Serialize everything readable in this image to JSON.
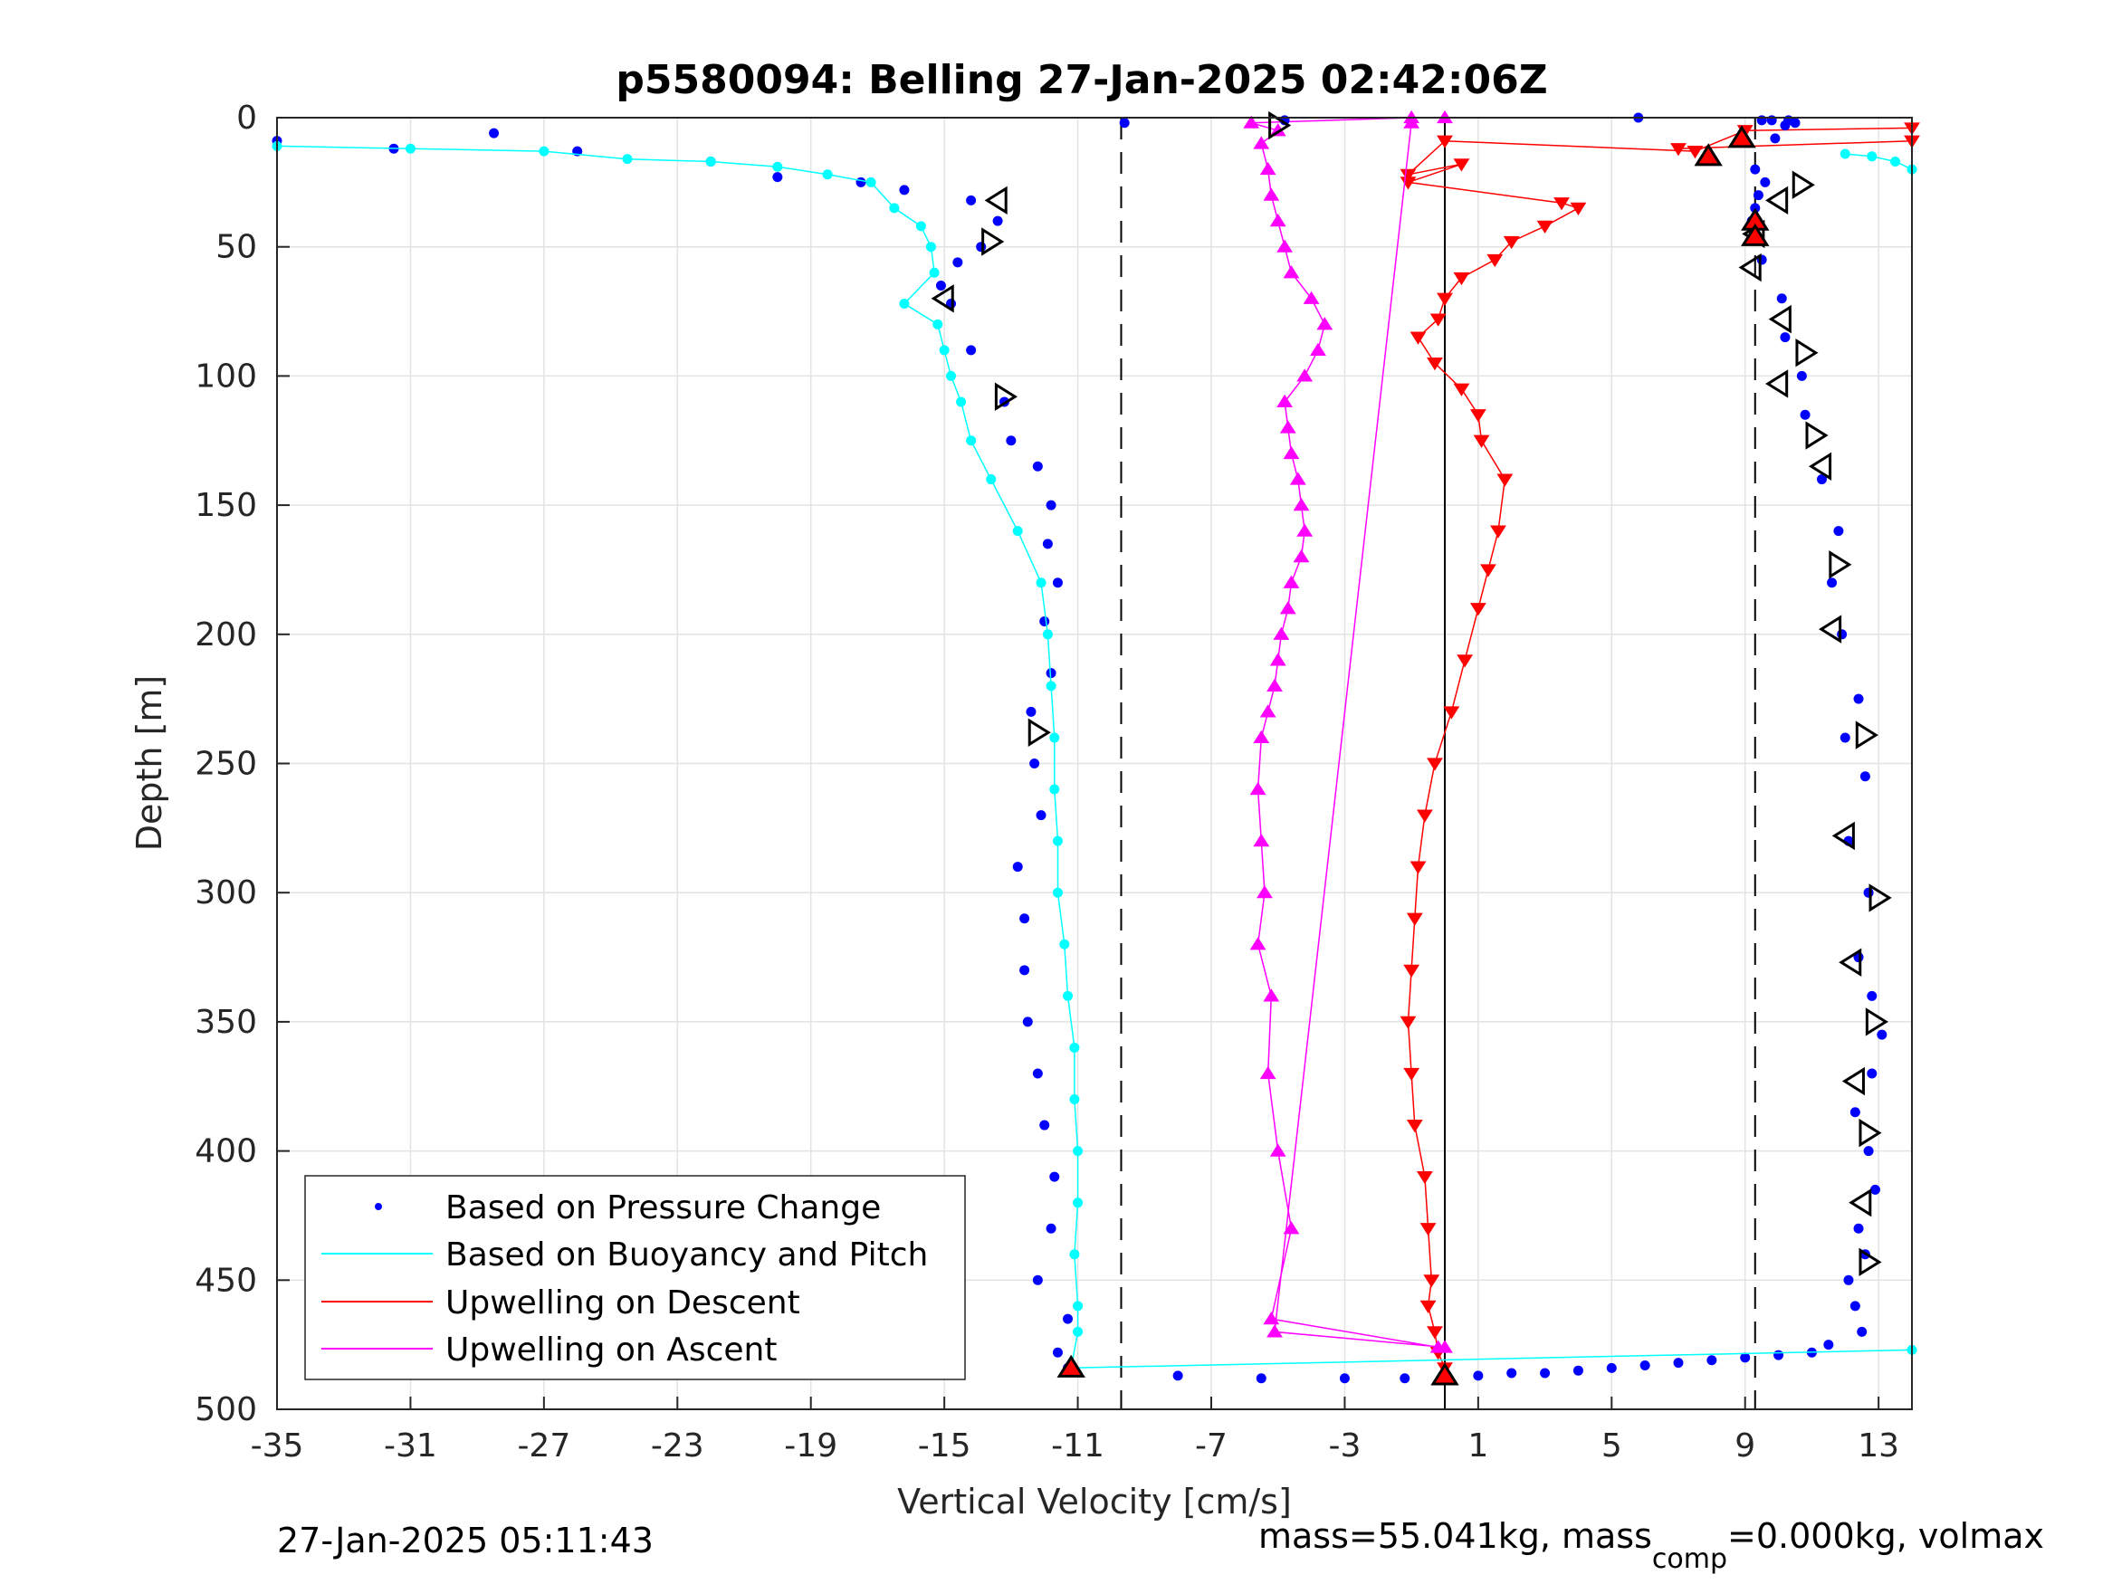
{
  "chart_data": {
    "type": "scatter",
    "title": "p5580094: Belling 27-Jan-2025 02:42:06Z",
    "xlabel": "Vertical Velocity [cm/s]",
    "ylabel": "Depth [m]",
    "xlim": [
      -35,
      14
    ],
    "ylim": [
      0,
      500
    ],
    "y_reversed": true,
    "grid": true,
    "legend_position": "bottom-left",
    "xticks": [
      -35,
      -31,
      -27,
      -23,
      -19,
      -15,
      -11,
      -7,
      -3,
      1,
      5,
      9,
      13
    ],
    "yticks": [
      0,
      50,
      100,
      150,
      200,
      250,
      300,
      350,
      400,
      450,
      500
    ],
    "reference_lines": [
      {
        "x": -9.7,
        "style": "dashed"
      },
      {
        "x": 0,
        "style": "solid"
      },
      {
        "x": 9.3,
        "style": "dashed"
      }
    ],
    "series": [
      {
        "name": "Based on Pressure Change",
        "color": "#0000ff",
        "marker": "dot",
        "segments": [
          {
            "x": [
              -35,
              -31.5,
              -28.5,
              -26,
              -22,
              -20,
              -17.5,
              -16.2,
              -14.2,
              -13.4,
              -13.9,
              -14.6,
              -15.1,
              -14.8,
              -14.2,
              -13.2,
              -13.0,
              -12.2,
              -11.8,
              -11.9,
              -11.6,
              -12.0,
              -11.8,
              -12.4,
              -12.3,
              -12.1,
              -12.8,
              -12.6,
              -12.6,
              -12.5,
              -12.2,
              -12.0,
              -11.7,
              -11.8,
              -12.2,
              -11.3,
              -11.6,
              -11.3
            ],
            "y": [
              9,
              12,
              6,
              13,
              17,
              23,
              25,
              28,
              32,
              40,
              50,
              56,
              65,
              72,
              90,
              110,
              125,
              135,
              150,
              165,
              180,
              195,
              215,
              230,
              250,
              270,
              290,
              310,
              330,
              350,
              370,
              390,
              410,
              430,
              450,
              465,
              478,
              485
            ]
          },
          {
            "x": [
              -11.3,
              -8,
              -5.5,
              -3,
              -1.2,
              0,
              1,
              2,
              3,
              4,
              5,
              6,
              7,
              8,
              9,
              10,
              11,
              11.5,
              12.5,
              12.3,
              12.1,
              12.6,
              12.4,
              12.9,
              12.7,
              12.3,
              12.8,
              13.1,
              12.8,
              12.4,
              12.7,
              12.1,
              12.6,
              12.0,
              12.4,
              11.9,
              11.6,
              11.8,
              11.3,
              10.8,
              10.7,
              10.2,
              10.1,
              9.5,
              9.3,
              9.2,
              9.3,
              9.4,
              9.6,
              9.3,
              9.9,
              10.2,
              9.8
            ],
            "y": [
              484,
              487,
              488,
              488,
              488,
              487,
              487,
              486,
              486,
              485,
              484,
              483,
              482,
              481,
              480,
              479,
              478,
              475,
              470,
              460,
              450,
              440,
              430,
              415,
              400,
              385,
              370,
              355,
              340,
              325,
              300,
              280,
              255,
              240,
              225,
              200,
              180,
              160,
              140,
              115,
              100,
              85,
              70,
              55,
              45,
              40,
              35,
              30,
              25,
              20,
              8,
              3,
              1
            ]
          },
          {
            "x": [
              -9.6,
              -4.8,
              5.8,
              9.5,
              10.3,
              10.5
            ],
            "y": [
              2,
              1,
              0,
              1,
              1,
              2
            ]
          }
        ]
      },
      {
        "name": "Based on Buoyancy and Pitch",
        "color": "#00ffff",
        "marker": "line+dot",
        "segments": [
          {
            "x": [
              -35,
              -31,
              -27,
              -24.5,
              -22,
              -20,
              -18.5,
              -17.2,
              -16.5,
              -15.7,
              -15.4,
              -15.3,
              -16.2,
              -15.2,
              -15.0,
              -14.8,
              -14.5,
              -14.2,
              -13.6,
              -12.8,
              -12.1,
              -11.9,
              -11.8,
              -11.7,
              -11.7,
              -11.6,
              -11.6,
              -11.4,
              -11.3,
              -11.1,
              -11.1,
              -11.0,
              -11.0,
              -11.1,
              -11.0,
              -11.0,
              -11.2
            ],
            "y": [
              11,
              12,
              13,
              16,
              17,
              19,
              22,
              25,
              35,
              42,
              50,
              60,
              72,
              80,
              90,
              100,
              110,
              125,
              140,
              160,
              180,
              200,
              220,
              240,
              260,
              280,
              300,
              320,
              340,
              360,
              380,
              400,
              420,
              440,
              460,
              470,
              484
            ]
          },
          {
            "x": [
              -11.2,
              14
            ],
            "y": [
              484,
              477
            ]
          },
          {
            "x": [
              12,
              12.8,
              13.5,
              14
            ],
            "y": [
              14,
              15,
              17,
              20
            ]
          }
        ]
      },
      {
        "name": "Upwelling on Descent",
        "color": "#ff0000",
        "marker": "triangle-down",
        "segments": [
          {
            "x": [
              14,
              9.0,
              7.5,
              0.0,
              -1.1,
              0.5,
              -1.1,
              3.5,
              4.0,
              3.0,
              2.0,
              1.5,
              0.5,
              0.0,
              -0.2,
              -0.8,
              -0.3,
              0.5,
              1.0,
              1.1,
              1.8,
              1.6,
              1.3,
              1.0,
              0.6,
              0.2,
              -0.3,
              -0.6,
              -0.8,
              -0.9,
              -1.0,
              -1.1,
              -1.0,
              -0.9,
              -0.6,
              -0.5,
              -0.4,
              -0.5,
              -0.3,
              -0.2,
              0.0
            ],
            "y": [
              4,
              5,
              13,
              9,
              22,
              18,
              25,
              33,
              35,
              42,
              48,
              55,
              62,
              70,
              78,
              85,
              95,
              105,
              115,
              125,
              140,
              160,
              175,
              190,
              210,
              230,
              250,
              270,
              290,
              310,
              330,
              350,
              370,
              390,
              410,
              430,
              450,
              460,
              470,
              478,
              484
            ]
          },
          {
            "x": [
              7.0,
              14
            ],
            "y": [
              12,
              9
            ]
          }
        ]
      },
      {
        "name": "Upwelling on Ascent",
        "color": "#ff00ff",
        "marker": "triangle-up",
        "segments": [
          {
            "x": [
              0.0,
              -1.0,
              -5.8,
              -5.0,
              -5.5,
              -5.3,
              -5.2,
              -5.0,
              -4.8,
              -4.6,
              -4.0,
              -3.6,
              -3.8,
              -4.2,
              -4.8,
              -4.7,
              -4.6,
              -4.4,
              -4.3,
              -4.2,
              -4.3,
              -4.6,
              -4.7,
              -4.9,
              -5.0,
              -5.1,
              -5.3,
              -5.5,
              -5.6,
              -5.5,
              -5.4,
              -5.6,
              -5.2,
              -5.3,
              -5.0,
              -4.6,
              -5.2,
              -0.2,
              0.0,
              -5.1,
              -1.0
            ],
            "y": [
              0,
              0,
              2,
              5,
              10,
              20,
              30,
              40,
              50,
              60,
              70,
              80,
              90,
              100,
              110,
              120,
              130,
              140,
              150,
              160,
              170,
              180,
              190,
              200,
              210,
              220,
              230,
              240,
              260,
              280,
              300,
              320,
              340,
              370,
              400,
              430,
              465,
              476,
              476,
              470,
              2
            ]
          }
        ]
      }
    ],
    "open_triangle_markers": [
      {
        "x": -13.4,
        "y": 32,
        "dir": "left"
      },
      {
        "x": -13.6,
        "y": 48,
        "dir": "right"
      },
      {
        "x": -15.0,
        "y": 70,
        "dir": "left"
      },
      {
        "x": -13.2,
        "y": 108,
        "dir": "right"
      },
      {
        "x": -12.2,
        "y": 238,
        "dir": "right"
      },
      {
        "x": -5.0,
        "y": 3,
        "dir": "right"
      },
      {
        "x": 10.7,
        "y": 26,
        "dir": "right"
      },
      {
        "x": 10.0,
        "y": 32,
        "dir": "left"
      },
      {
        "x": 9.3,
        "y": 45,
        "dir": "left"
      },
      {
        "x": 9.2,
        "y": 58,
        "dir": "left"
      },
      {
        "x": 10.1,
        "y": 78,
        "dir": "left"
      },
      {
        "x": 10.8,
        "y": 91,
        "dir": "right"
      },
      {
        "x": 10.0,
        "y": 103,
        "dir": "left"
      },
      {
        "x": 11.1,
        "y": 123,
        "dir": "right"
      },
      {
        "x": 11.3,
        "y": 135,
        "dir": "left"
      },
      {
        "x": 11.8,
        "y": 173,
        "dir": "right"
      },
      {
        "x": 11.6,
        "y": 198,
        "dir": "left"
      },
      {
        "x": 12.6,
        "y": 239,
        "dir": "right"
      },
      {
        "x": 12.0,
        "y": 278,
        "dir": "left"
      },
      {
        "x": 13.0,
        "y": 302,
        "dir": "right"
      },
      {
        "x": 12.2,
        "y": 327,
        "dir": "left"
      },
      {
        "x": 12.9,
        "y": 350,
        "dir": "right"
      },
      {
        "x": 12.3,
        "y": 373,
        "dir": "left"
      },
      {
        "x": 12.7,
        "y": 393,
        "dir": "right"
      },
      {
        "x": 12.5,
        "y": 420,
        "dir": "left"
      },
      {
        "x": 12.7,
        "y": 443,
        "dir": "right"
      }
    ],
    "filled_triangle_markers": [
      {
        "x": 8.9,
        "y": 8,
        "color": "#ff0000"
      },
      {
        "x": 7.9,
        "y": 15,
        "color": "#ff0000"
      },
      {
        "x": 9.3,
        "y": 40,
        "color": "#ff0000"
      },
      {
        "x": 9.3,
        "y": 46,
        "color": "#ff0000"
      },
      {
        "x": -11.2,
        "y": 484,
        "color": "#ff0000"
      },
      {
        "x": 0.0,
        "y": 487,
        "color": "#ff0000"
      }
    ],
    "legend": [
      {
        "label": "Based on Pressure Change",
        "color": "#0000ff",
        "kind": "dot"
      },
      {
        "label": "Based on Buoyancy and Pitch",
        "color": "#00ffff",
        "kind": "line"
      },
      {
        "label": "Upwelling on Descent",
        "color": "#ff0000",
        "kind": "line"
      },
      {
        "label": "Upwelling on Ascent",
        "color": "#ff00ff",
        "kind": "line"
      }
    ]
  },
  "footer": {
    "left": "27-Jan-2025 05:11:43",
    "right_main": "mass=55.041kg, mass",
    "right_sub": "comp",
    "right_tail": "=0.000kg, volmax"
  }
}
